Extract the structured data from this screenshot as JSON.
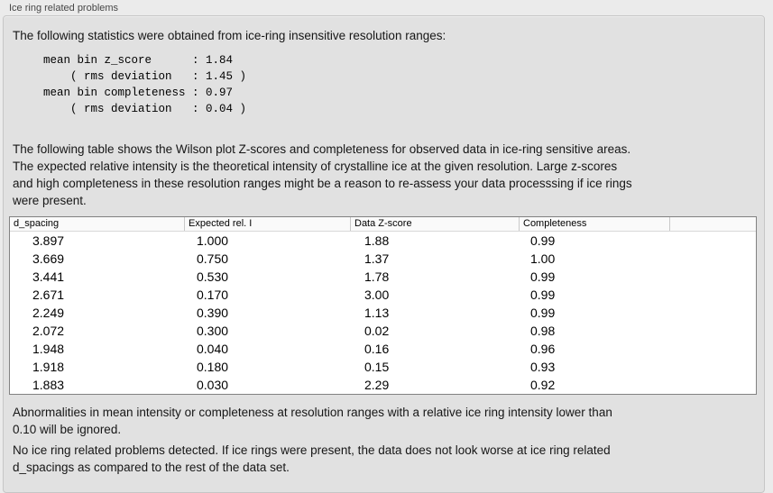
{
  "panel": {
    "title": "Ice ring related problems"
  },
  "intro_text": "The following statistics were obtained from ice-ring insensitive resolution ranges:",
  "stats": {
    "lines": [
      "mean bin z_score      : 1.84",
      "    ( rms deviation   : 1.45 )",
      "mean bin completeness : 0.97",
      "    ( rms deviation   : 0.04 )"
    ],
    "mean_bin_z_score": "1.84",
    "z_score_rms_deviation": "1.45",
    "mean_bin_completeness": "0.97",
    "completeness_rms_deviation": "0.04"
  },
  "description": {
    "lines": [
      "The following table shows the Wilson plot Z-scores and completeness for observed data in ice-ring sensitive areas.",
      "The expected relative intensity is the theoretical intensity of crystalline ice at the given resolution. Large z-scores",
      "and high completeness in these resolution ranges might be a reason to re-assess your data processsing if ice rings",
      "were present."
    ]
  },
  "table": {
    "columns": [
      "d_spacing",
      "Expected rel. I",
      "Data Z-score",
      "Completeness",
      ""
    ],
    "rows": [
      [
        "3.897",
        "1.000",
        "1.88",
        "0.99"
      ],
      [
        "3.669",
        "0.750",
        "1.37",
        "1.00"
      ],
      [
        "3.441",
        "0.530",
        "1.78",
        "0.99"
      ],
      [
        "2.671",
        "0.170",
        "3.00",
        "0.99"
      ],
      [
        "2.249",
        "0.390",
        "1.13",
        "0.99"
      ],
      [
        "2.072",
        "0.300",
        "0.02",
        "0.98"
      ],
      [
        "1.948",
        "0.040",
        "0.16",
        "0.96"
      ],
      [
        "1.918",
        "0.180",
        "0.15",
        "0.93"
      ],
      [
        "1.883",
        "0.030",
        "2.29",
        "0.92"
      ]
    ]
  },
  "ignore_note": {
    "lines": [
      "Abnormalities in mean intensity or completeness at resolution ranges with a relative ice ring intensity lower than",
      "0.10 will be ignored."
    ]
  },
  "conclusion": {
    "lines": [
      "No ice ring related problems detected. If ice rings were present, the data does not look worse at ice ring related",
      "d_spacings as compared to the rest of the data set."
    ]
  },
  "colors": {
    "page_background": "#ebebeb",
    "panel_background": "#e1e1e1",
    "panel_border": "#c6c6c6",
    "table_background": "#ffffff",
    "table_border": "#828282",
    "table_header_background": "#fafafa",
    "text": "#161616"
  }
}
